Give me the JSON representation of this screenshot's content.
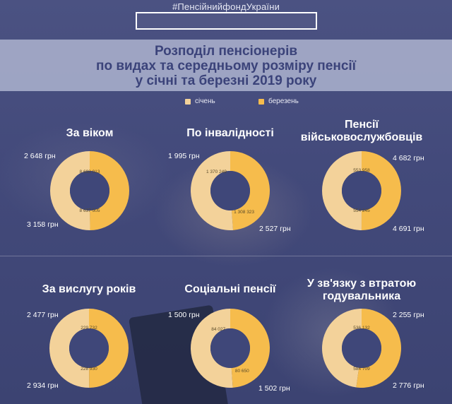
{
  "header": {
    "hashtag": "#ПенсійнийфондУкраїни",
    "title_lines": [
      "Розподіл пенсіонерів",
      "по видах та середньому розміру пенсії",
      "у січні та березні 2019 року"
    ]
  },
  "colors": {
    "january": "#f3d29a",
    "march": "#f6bc4c",
    "background": "#3f4779"
  },
  "chart_data": {
    "type": "pie",
    "variant": "donut",
    "legend": [
      "січень",
      "березень"
    ],
    "panels": [
      {
        "title_lines": [
          "За віком"
        ],
        "january": {
          "count": "8 693 013",
          "count_value": 8693013,
          "avg_pension": "2 648 грн"
        },
        "march": {
          "count": "8 637 505",
          "count_value": 8637505,
          "avg_pension": "3 158 грн"
        }
      },
      {
        "title_lines": [
          "По інвалідності"
        ],
        "january": {
          "count": "1 370 249",
          "count_value": 1370249,
          "avg_pension": "1 995 грн"
        },
        "march": {
          "count": "1 308 323",
          "count_value": 1308323,
          "avg_pension": "2 527 грн"
        }
      },
      {
        "title_lines": [
          "Пенсії",
          "військовослужбовців"
        ],
        "january": {
          "count": "553 958",
          "count_value": 553958,
          "avg_pension": "4 682 грн"
        },
        "march": {
          "count": "554 245",
          "count_value": 554245,
          "avg_pension": "4 691 грн"
        }
      },
      {
        "title_lines": [
          "За вислугу років"
        ],
        "january": {
          "count": "229 732",
          "count_value": 229732,
          "avg_pension": "2 477 грн"
        },
        "march": {
          "count": "228 930",
          "count_value": 228930,
          "avg_pension": "2 934 грн"
        }
      },
      {
        "title_lines": [
          "Соціальні пенсії"
        ],
        "january": {
          "count": "84 027",
          "count_value": 84027,
          "avg_pension": "1 500 грн"
        },
        "march": {
          "count": "80 650",
          "count_value": 80650,
          "avg_pension": "1 502 грн"
        }
      },
      {
        "title_lines": [
          "У зв'язку з втратою",
          "годувальника"
        ],
        "january": {
          "count": "536 132",
          "count_value": 536132,
          "avg_pension": "2 255 грн"
        },
        "march": {
          "count": "584 709",
          "count_value": 584709,
          "avg_pension": "2 776 грн"
        }
      }
    ]
  }
}
